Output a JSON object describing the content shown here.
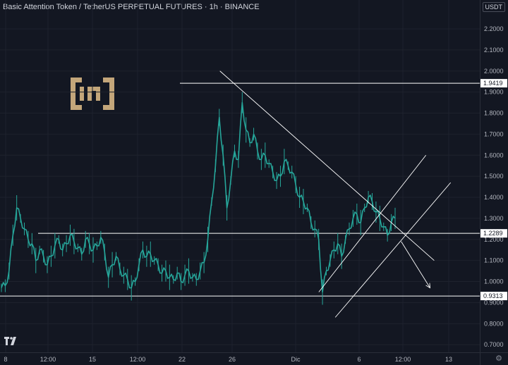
{
  "title": "Basic Attention Token / TetherUS PERPETUAL FUTURES · 1h · BINANCE",
  "currency": "USDT",
  "colors": {
    "background": "#131722",
    "candle": "#26a69a",
    "price_line": "#ffffff",
    "axis_text": "#b2b5be",
    "logo": "#c3a67a"
  },
  "icons": {
    "logo": "beincrypto-logo",
    "watermark": "tradingview-logo-icon",
    "settings": "gear-icon"
  },
  "chart_data": {
    "type": "line",
    "y_ticks": [
      "2.2000",
      "2.1000",
      "2.0000",
      "1.9000",
      "1.8000",
      "1.7000",
      "1.6000",
      "1.5000",
      "1.4000",
      "1.3000",
      "1.2000",
      "1.1000",
      "1.0000",
      "0.9000",
      "0.8000",
      "0.7000"
    ],
    "x_ticks": [
      "8",
      "12:00",
      "15",
      "12:00",
      "22",
      "26",
      "Dic",
      "6",
      "12:00",
      "13"
    ],
    "price_labels": [
      "1.9419",
      "1.2289",
      "0.9313"
    ],
    "horizontal_levels": [
      1.9419,
      1.2289,
      0.9313
    ],
    "price_series_close": [
      0.97,
      0.98,
      1.05,
      1.22,
      1.35,
      1.3,
      1.25,
      1.2,
      1.18,
      1.1,
      1.15,
      1.12,
      1.08,
      1.12,
      1.17,
      1.2,
      1.15,
      1.18,
      1.22,
      1.19,
      1.16,
      1.13,
      1.2,
      1.18,
      1.15,
      1.17,
      1.21,
      1.14,
      1.02,
      1.08,
      1.12,
      1.06,
      1.03,
      1.01,
      0.97,
      1.0,
      1.08,
      1.15,
      1.12,
      1.13,
      1.1,
      1.08,
      1.04,
      1.05,
      1.02,
      1.01,
      1.04,
      1.0,
      1.03,
      1.05,
      1.02,
      1.01,
      1.05,
      1.09,
      1.2,
      1.38,
      1.55,
      1.78,
      1.6,
      1.35,
      1.48,
      1.62,
      1.58,
      1.85,
      1.72,
      1.66,
      1.7,
      1.62,
      1.58,
      1.6,
      1.56,
      1.52,
      1.48,
      1.5,
      1.57,
      1.55,
      1.52,
      1.46,
      1.4,
      1.38,
      1.35,
      1.28,
      1.25,
      1.2,
      0.95,
      1.05,
      1.1,
      1.15,
      1.18,
      1.12,
      1.2,
      1.25,
      1.3,
      1.32,
      1.28,
      1.35,
      1.4,
      1.38,
      1.33,
      1.3,
      1.26,
      1.22,
      1.28,
      1.3
    ],
    "trendlines": [
      {
        "name": "descending-resistance",
        "from": [
          26,
          2.0
        ],
        "to": [
          52,
          1.1
        ]
      },
      {
        "name": "channel-upper",
        "from": [
          38,
          0.95
        ],
        "to": [
          51,
          1.6
        ]
      },
      {
        "name": "channel-lower",
        "from": [
          40,
          0.83
        ],
        "to": [
          54,
          1.47
        ]
      },
      {
        "name": "projection-arrow",
        "from": [
          48,
          1.19
        ],
        "to": [
          51.5,
          0.97
        ]
      }
    ],
    "ylim": [
      0.65,
      2.27
    ],
    "grid": true
  }
}
